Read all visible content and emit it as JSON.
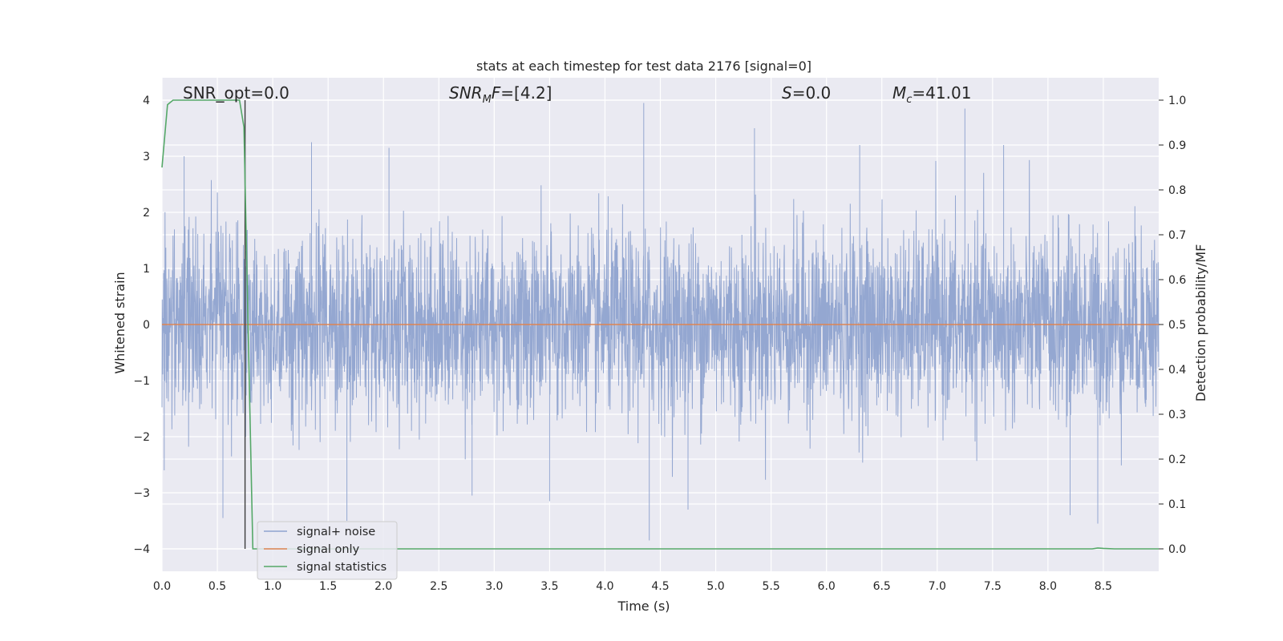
{
  "chart_data": {
    "type": "line",
    "title": "stats at each timestep for test data 2176 [signal=0]",
    "xlabel": "Time (s)",
    "ylabel": "Whitened strain",
    "ylabel_right": "Detection probability/MF",
    "xlim": [
      0.0,
      9.0
    ],
    "ylim": [
      -4.4,
      4.4
    ],
    "ylim_right": [
      -0.05,
      1.05
    ],
    "x_ticks": [
      0.0,
      0.5,
      1.0,
      1.5,
      2.0,
      2.5,
      3.0,
      3.5,
      4.0,
      4.5,
      5.0,
      5.5,
      6.0,
      6.5,
      7.0,
      7.5,
      8.0,
      8.5
    ],
    "x_tick_labels": [
      "0.0",
      "0.5",
      "1.0",
      "1.5",
      "2.0",
      "2.5",
      "3.0",
      "3.5",
      "4.0",
      "4.5",
      "5.0",
      "5.5",
      "6.0",
      "6.5",
      "7.0",
      "7.5",
      "8.0",
      "8.5"
    ],
    "y_ticks": [
      -4,
      -3,
      -2,
      -1,
      0,
      1,
      2,
      3,
      4
    ],
    "y_tick_labels": [
      "−4",
      "−3",
      "−2",
      "−1",
      "0",
      "1",
      "2",
      "3",
      "4"
    ],
    "y_right_ticks": [
      0.0,
      0.1,
      0.2,
      0.3,
      0.4,
      0.5,
      0.6,
      0.7,
      0.8,
      0.9,
      1.0
    ],
    "y_right_tick_labels": [
      "0.0",
      "0.1",
      "0.2",
      "0.3",
      "0.4",
      "0.5",
      "0.6",
      "0.7",
      "0.8",
      "0.9",
      "1.0"
    ],
    "grid": true,
    "legend_position": "lower-left",
    "annotations": [
      "SNR_opt=0.0",
      "SNR_MF=[4.2]",
      "S=0.0",
      "M_c=41.01"
    ],
    "vertical_marker_x": 0.75,
    "series": [
      {
        "name": "signal+ noise",
        "color": "#8fa3cf",
        "axis": "left",
        "description_samples": {
          "x": [
            0.0,
            9.0
          ],
          "envelope_typical": [
            -1.8,
            1.8
          ],
          "peaks": [
            {
              "x": 0.02,
              "y": -2.6
            },
            {
              "x": 0.2,
              "y": 3.0
            },
            {
              "x": 0.55,
              "y": -3.45
            },
            {
              "x": 0.75,
              "y": 3.15
            },
            {
              "x": 1.35,
              "y": 3.25
            },
            {
              "x": 1.67,
              "y": -3.5
            },
            {
              "x": 2.05,
              "y": 3.15
            },
            {
              "x": 2.8,
              "y": -3.05
            },
            {
              "x": 3.5,
              "y": -3.15
            },
            {
              "x": 4.35,
              "y": 3.95
            },
            {
              "x": 4.4,
              "y": -3.85
            },
            {
              "x": 4.75,
              "y": -3.3
            },
            {
              "x": 5.35,
              "y": 3.5
            },
            {
              "x": 6.3,
              "y": 3.2
            },
            {
              "x": 7.25,
              "y": 3.85
            },
            {
              "x": 7.6,
              "y": 3.2
            },
            {
              "x": 8.2,
              "y": -3.4
            },
            {
              "x": 8.45,
              "y": -3.55
            }
          ]
        }
      },
      {
        "name": "signal only",
        "color": "#dd8452",
        "axis": "left",
        "x": [
          0.0,
          9.0
        ],
        "y": [
          0.0,
          0.0
        ]
      },
      {
        "name": "signal statistics",
        "color": "#55a868",
        "axis": "right",
        "x": [
          0.0,
          0.05,
          0.1,
          0.15,
          0.3,
          0.5,
          0.65,
          0.7,
          0.74,
          0.78,
          0.82,
          1.0,
          2.0,
          4.0,
          6.0,
          8.0,
          8.4,
          8.45,
          8.5,
          8.6,
          9.0
        ],
        "y": [
          0.85,
          0.99,
          1.0,
          1.0,
          1.0,
          1.0,
          1.0,
          1.0,
          0.94,
          0.47,
          0.0,
          0.0,
          0.0,
          0.0,
          0.0,
          0.0,
          0.0,
          0.002,
          0.001,
          0.0,
          0.0
        ]
      }
    ]
  }
}
